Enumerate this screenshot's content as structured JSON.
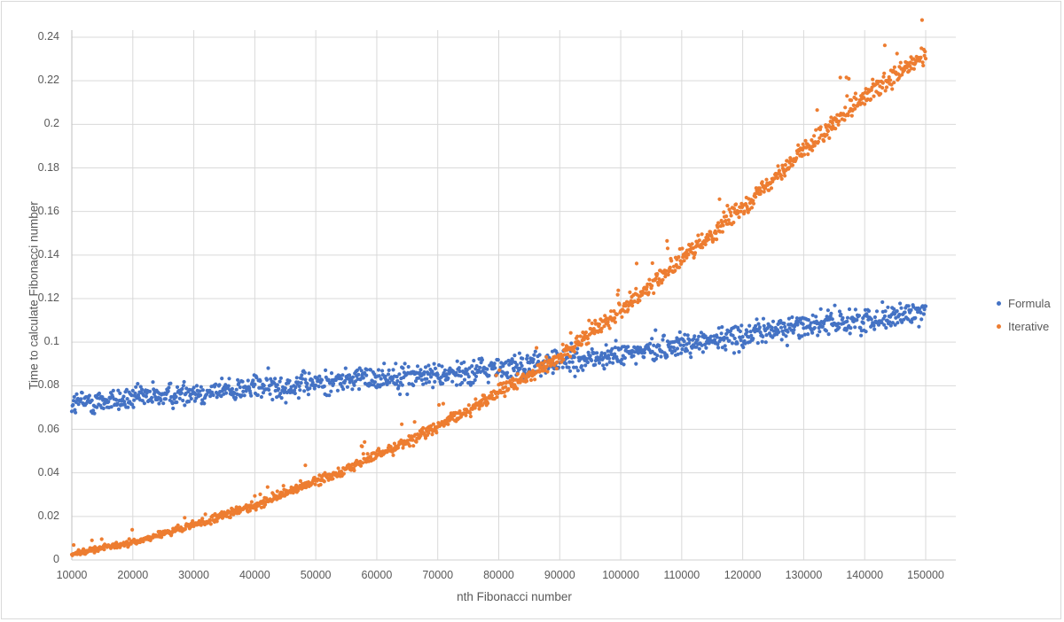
{
  "chart_data": {
    "type": "scatter",
    "title": "",
    "xlabel": "nth Fibonacci number",
    "ylabel": "Time to calculate Fibonacci number",
    "xlim": [
      10000,
      150000
    ],
    "ylim": [
      0,
      0.24
    ],
    "x_ticks": [
      "10000",
      "20000",
      "30000",
      "40000",
      "50000",
      "60000",
      "70000",
      "80000",
      "90000",
      "100000",
      "110000",
      "120000",
      "130000",
      "140000",
      "150000"
    ],
    "y_ticks": [
      "0",
      "0.02",
      "0.04",
      "0.06",
      "0.08",
      "0.1",
      "0.12",
      "0.14",
      "0.16",
      "0.18",
      "0.2",
      "0.22",
      "0.24"
    ],
    "grid": true,
    "legend_position": "right",
    "series": [
      {
        "name": "Formula",
        "color": "#4472c4",
        "x": [
          10000,
          20000,
          30000,
          40000,
          50000,
          60000,
          70000,
          80000,
          90000,
          100000,
          110000,
          120000,
          130000,
          140000,
          150000
        ],
        "values": [
          0.072,
          0.074,
          0.077,
          0.079,
          0.081,
          0.084,
          0.085,
          0.088,
          0.091,
          0.094,
          0.099,
          0.103,
          0.108,
          0.11,
          0.114
        ]
      },
      {
        "name": "Iterative",
        "color": "#ed7d31",
        "x": [
          10000,
          20000,
          30000,
          40000,
          50000,
          60000,
          70000,
          80000,
          90000,
          100000,
          110000,
          120000,
          130000,
          140000,
          150000
        ],
        "values": [
          0.003,
          0.008,
          0.016,
          0.025,
          0.036,
          0.048,
          0.061,
          0.077,
          0.093,
          0.115,
          0.138,
          0.162,
          0.188,
          0.212,
          0.232
        ]
      }
    ]
  },
  "legend": {
    "items": [
      {
        "label": "Formula",
        "color": "#4472c4"
      },
      {
        "label": "Iterative",
        "color": "#ed7d31"
      }
    ]
  },
  "style": {
    "gridline_color": "#d9d9d9",
    "axis_text_color": "#595959"
  }
}
